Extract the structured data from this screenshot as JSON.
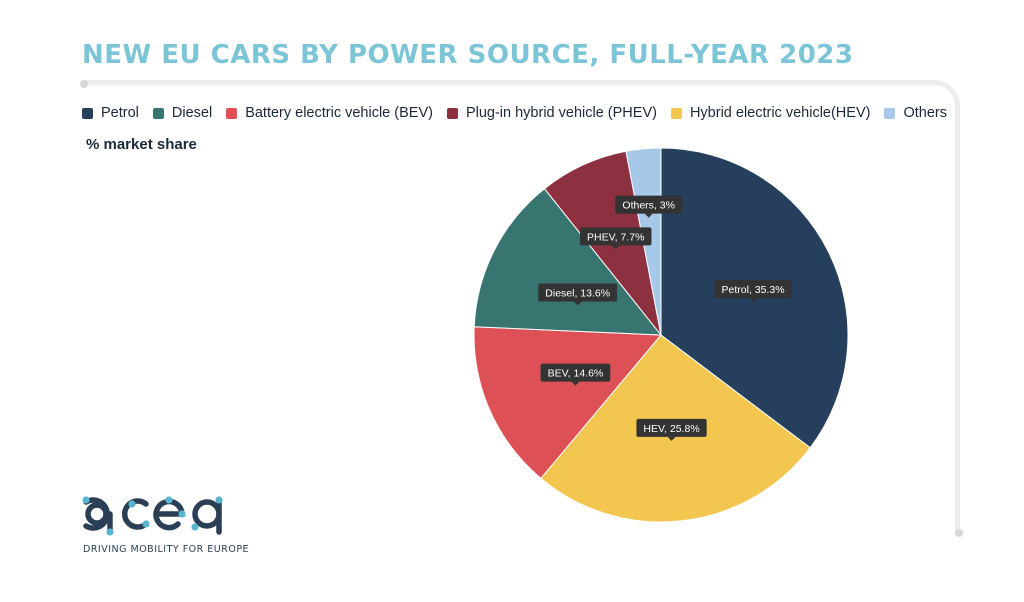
{
  "title": "NEW EU CARS BY POWER SOURCE, FULL-YEAR 2023",
  "subtitle": "% market share",
  "legend": [
    {
      "label": "Petrol",
      "color": "#263f5c"
    },
    {
      "label": "Diesel",
      "color": "#387571"
    },
    {
      "label": "Battery electric vehicle (BEV)",
      "color": "#dd5056"
    },
    {
      "label": "Plug-in hybrid vehicle (PHEV)",
      "color": "#8d3040"
    },
    {
      "label": "Hybrid electric vehicle(HEV)",
      "color": "#f3c650"
    },
    {
      "label": "Others",
      "color": "#a6c8e9"
    }
  ],
  "chart_data": {
    "type": "pie",
    "title": "NEW EU CARS BY POWER SOURCE, FULL-YEAR 2023",
    "subtitle": "% market share",
    "slices": [
      {
        "name": "Petrol",
        "value": 35.3,
        "label": "Petrol, 35.3%",
        "color": "#263f5c"
      },
      {
        "name": "HEV",
        "value": 25.8,
        "label": "HEV, 25.8%",
        "color": "#f3c650"
      },
      {
        "name": "BEV",
        "value": 14.6,
        "label": "BEV, 14.6%",
        "color": "#dd5056"
      },
      {
        "name": "Diesel",
        "value": 13.6,
        "label": "Diesel, 13.6%",
        "color": "#387571"
      },
      {
        "name": "PHEV",
        "value": 7.7,
        "label": "PHEV, 7.7%",
        "color": "#8d3040"
      },
      {
        "name": "Others",
        "value": 3,
        "label": "Others, 3%",
        "color": "#a6c8e9"
      }
    ],
    "legend_position": "top"
  },
  "logo": {
    "text": "acea",
    "tagline": "DRIVING MOBILITY FOR EUROPE",
    "text_color": "#2a3f55",
    "dot_color": "#59b5cf"
  }
}
